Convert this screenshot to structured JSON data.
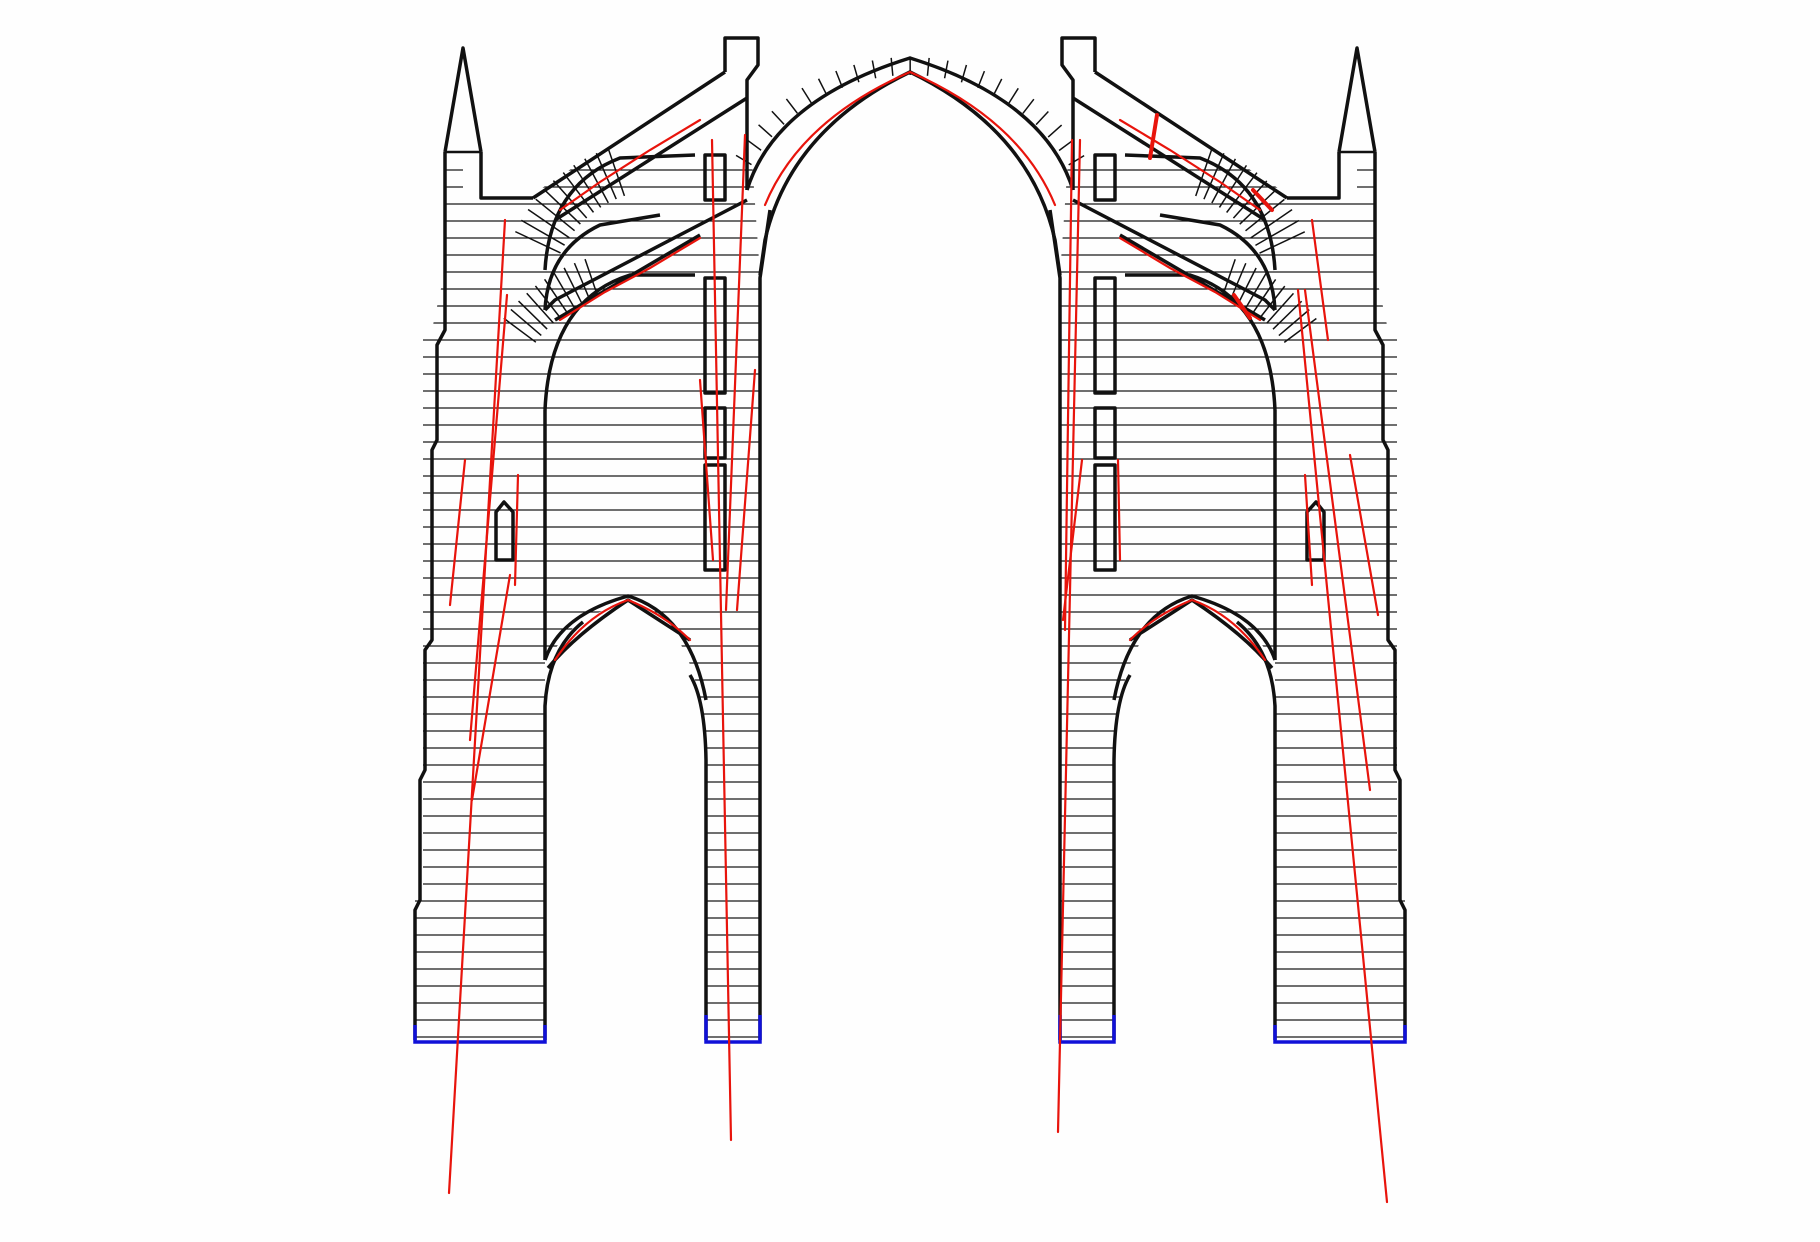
{
  "diagram": {
    "subject": "gothic-cathedral-section",
    "colors": {
      "background": "#fefefe",
      "masonry": "#111111",
      "courses": "#1a1a1a",
      "thrust_lines": "#e8140c",
      "foundations": "#1010d8"
    }
  }
}
